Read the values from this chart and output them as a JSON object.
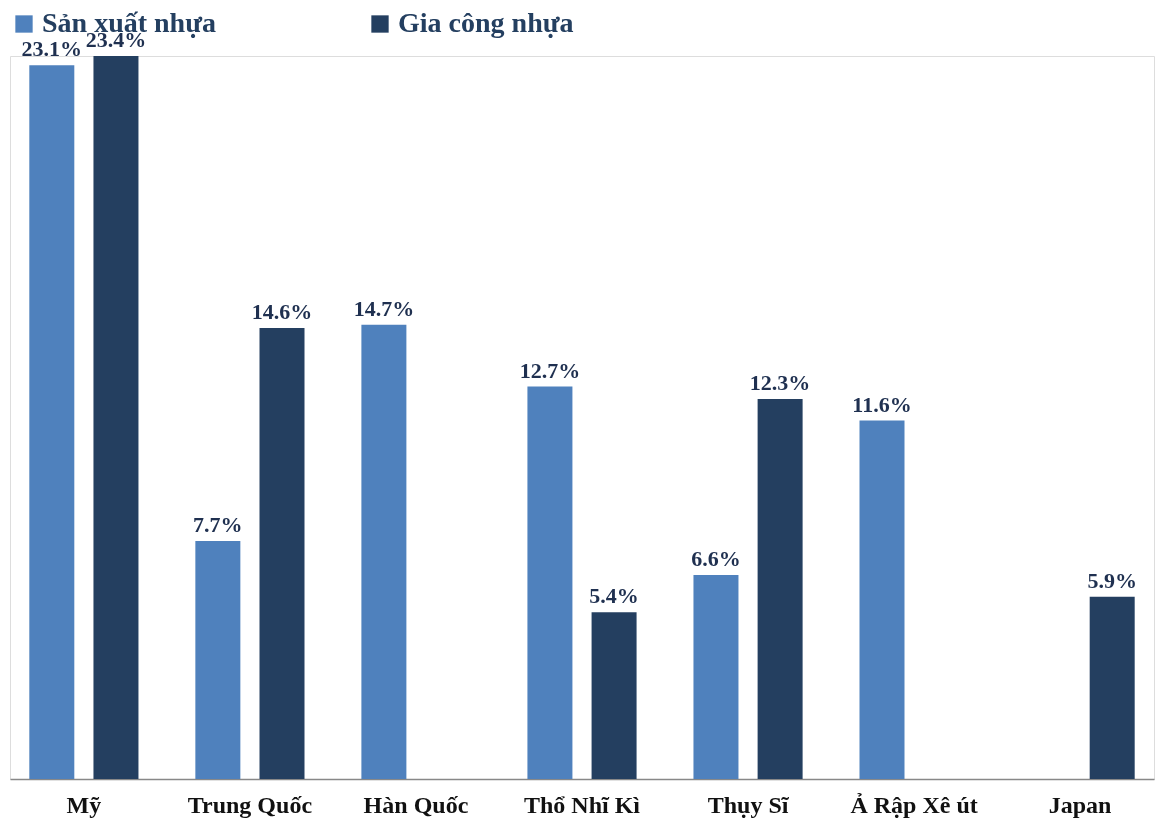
{
  "chart_data": {
    "type": "bar",
    "categories": [
      "Mỹ",
      "Trung Quốc",
      "Hàn Quốc",
      "Thổ Nhĩ Kì",
      "Thụy Sĩ",
      "Ả Rập Xê út",
      "Japan"
    ],
    "series": [
      {
        "name": "Sản xuất nhựa",
        "color": "#4f81bd",
        "values": [
          23.1,
          7.7,
          14.7,
          12.7,
          6.6,
          11.6,
          null
        ],
        "value_labels": [
          "23.1%",
          "7.7%",
          "14.7%",
          "12.7%",
          "6.6%",
          "11.6%",
          null
        ]
      },
      {
        "name": "Gia công nhựa",
        "color": "#243f60",
        "values": [
          23.4,
          14.6,
          null,
          5.4,
          12.3,
          null,
          5.9
        ],
        "value_labels": [
          "23.4%",
          "14.6%",
          null,
          "5.4%",
          "12.3%",
          null,
          "5.9%"
        ]
      }
    ],
    "legend": "top",
    "grid": false
  }
}
